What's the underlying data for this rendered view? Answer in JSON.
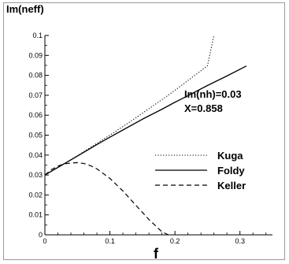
{
  "chart_data": {
    "type": "line",
    "title": "",
    "xlabel": "f",
    "ylabel": "Im(neff)",
    "xlim": [
      0,
      0.35
    ],
    "ylim": [
      0,
      0.1
    ],
    "x_ticks": [
      0,
      0.1,
      0.2,
      0.3
    ],
    "x_tick_labels": [
      "0",
      "0.1",
      "0.2",
      "0.3"
    ],
    "y_ticks": [
      0,
      0.01,
      0.02,
      0.03,
      0.04,
      0.05,
      0.06,
      0.07,
      0.08,
      0.09,
      0.1
    ],
    "y_tick_labels": [
      "0",
      "0.01",
      "0.02",
      "0.03",
      "0.04",
      "0.05",
      "0.06",
      "0.07",
      "0.08",
      "0.09",
      "0.1"
    ],
    "grid": false,
    "legend_position": "right",
    "annotations": [
      "Im(nh)=0.03",
      "X=0.858"
    ],
    "series": [
      {
        "name": "Kuga",
        "style": "dotted",
        "color": "#000000",
        "x": [
          0,
          0.02,
          0.05,
          0.08,
          0.1,
          0.13,
          0.15,
          0.18,
          0.2,
          0.22,
          0.25,
          0.26
        ],
        "y": [
          0.03,
          0.0337,
          0.0397,
          0.0459,
          0.05,
          0.0565,
          0.061,
          0.0678,
          0.0725,
          0.0774,
          0.0848,
          0.1
        ]
      },
      {
        "name": "Foldy",
        "style": "solid",
        "color": "#000000",
        "x": [
          0,
          0.02,
          0.05,
          0.08,
          0.1,
          0.13,
          0.15,
          0.18,
          0.2,
          0.22,
          0.25,
          0.28,
          0.31
        ],
        "y": [
          0.03,
          0.0338,
          0.0395,
          0.0453,
          0.049,
          0.0544,
          0.058,
          0.063,
          0.0665,
          0.0698,
          0.0749,
          0.0797,
          0.0847
        ]
      },
      {
        "name": "Keller",
        "style": "dashed",
        "color": "#000000",
        "x": [
          0,
          0.01,
          0.02,
          0.03,
          0.04,
          0.05,
          0.06,
          0.07,
          0.08,
          0.1,
          0.12,
          0.14,
          0.16,
          0.18,
          0.19
        ],
        "y": [
          0.03,
          0.0327,
          0.0345,
          0.0356,
          0.036,
          0.0362,
          0.0358,
          0.0347,
          0.0331,
          0.0283,
          0.022,
          0.0148,
          0.0077,
          0.0015,
          0.0
        ]
      }
    ]
  }
}
